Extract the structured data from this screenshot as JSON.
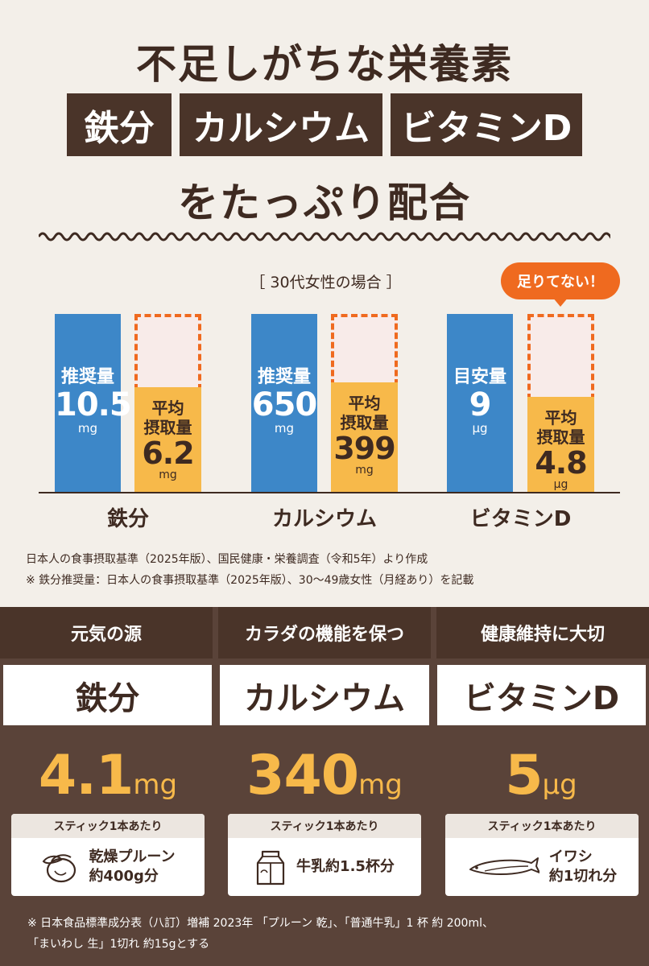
{
  "header": {
    "line1": "不足しがちな栄養素",
    "tags": [
      "鉄分",
      "カルシウム",
      "ビタミンD"
    ],
    "line3": "をたっぷり配合"
  },
  "chart_subtitle": "［ 30代女性の場合 ］",
  "callout": "足りてない！",
  "chart_data": {
    "type": "bar",
    "categories": [
      "鉄分",
      "カルシウム",
      "ビタミンD"
    ],
    "series": [
      {
        "labels": [
          "推奨量",
          "推奨量",
          "目安量"
        ],
        "values": [
          10.5,
          650,
          9
        ],
        "value_text": [
          "10.5",
          "650",
          "9"
        ],
        "units": [
          "mg",
          "mg",
          "μg"
        ]
      },
      {
        "label": "平均\n摂取量",
        "label_lines": [
          "平均",
          "摂取量"
        ],
        "values": [
          6.2,
          399,
          4.8
        ],
        "value_text": [
          "6.2",
          "399",
          "4.8"
        ],
        "units": [
          "mg",
          "mg",
          "μg"
        ]
      }
    ],
    "colors": {
      "recommended": "#3d87c8",
      "intake": "#f7b94a",
      "gap_border": "#ef6a1f",
      "gap_fill": "#f8ebe9"
    }
  },
  "notes": [
    "日本人の食事摂取基準（2025年版）、国民健康・栄養調査（令和5年）より作成",
    "※ 鉄分推奨量：日本人の食事摂取基準（2025年版）、30～49歳女性（月経あり）を記載"
  ],
  "nutrients": [
    {
      "heading": "元気の源",
      "name": "鉄分",
      "amount": "4.1",
      "unit": "mg",
      "card_title": "スティック1本あたり",
      "equiv_lines": [
        "乾燥プルーン",
        "約400g分"
      ],
      "icon": "prune-icon"
    },
    {
      "heading": "カラダの機能を保つ",
      "name": "カルシウム",
      "amount": "340",
      "unit": "mg",
      "card_title": "スティック1本あたり",
      "equiv_lines": [
        "牛乳約1.5杯分"
      ],
      "icon": "milk-carton-icon"
    },
    {
      "heading": "健康維持に大切",
      "name": "ビタミンD",
      "amount": "5",
      "unit": "μg",
      "card_title": "スティック1本あたり",
      "equiv_lines": [
        "イワシ",
        "約1切れ分"
      ],
      "icon": "sardine-icon"
    }
  ],
  "footnotes": [
    "※ 日本食品標準成分表（八訂）増補 2023年 「プルーン 乾」、「普通牛乳」1 杯 約 200ml、",
    "「まいわし 生」1切れ 約15gとする"
  ],
  "colors": {
    "brown_dark": "#4a3429",
    "brown_panel": "#5a4339",
    "background": "#f3efe9",
    "accent_orange": "#ef6a1f",
    "amount_yellow": "#f7b94a"
  }
}
